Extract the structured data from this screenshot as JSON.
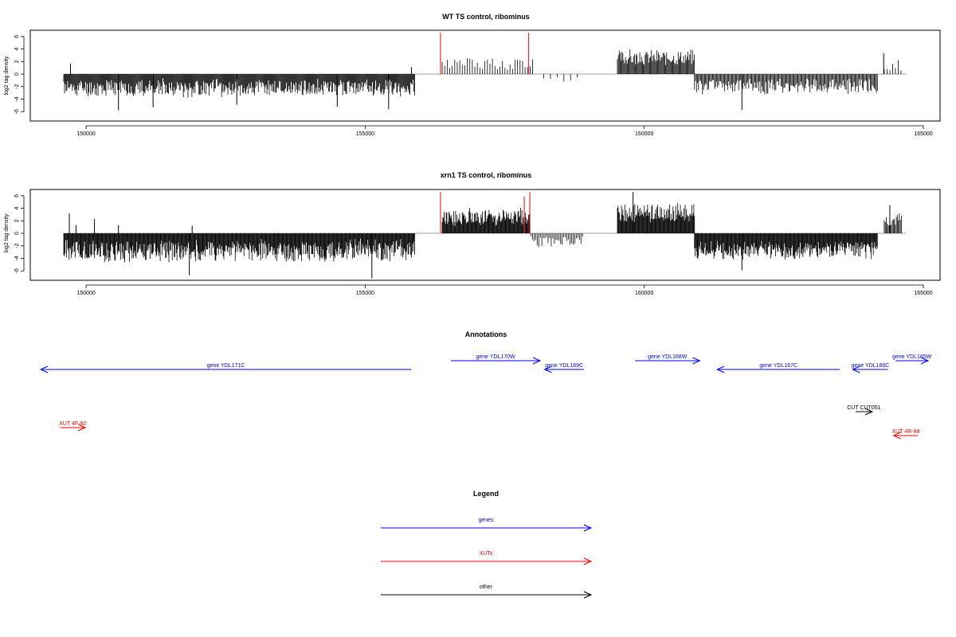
{
  "colors": {
    "bars": "#000000",
    "highlight": "#ff0000",
    "gene": "#0000ff",
    "xut": "#ff0000",
    "other": "#000000",
    "axis": "#000000",
    "baseline": "#808080"
  },
  "panels": [
    {
      "title": "WT TS control, ribominus",
      "ylabel": "log2 tag density",
      "xlim": [
        149000,
        165300
      ],
      "ylim": [
        -7.5,
        7
      ],
      "x_ticks": [
        150000,
        155000,
        160000,
        165000
      ],
      "y_ticks": [
        6,
        4,
        2,
        0,
        -2,
        -4,
        -6
      ],
      "segments": [
        {
          "start": 149600,
          "end": 155890,
          "sign": -1,
          "mean": -2.2,
          "amp": 1.6,
          "step": 14,
          "seed": 11
        },
        {
          "start": 156380,
          "end": 158000,
          "sign": 1,
          "mean": 1.6,
          "amp": 1.2,
          "step": 45,
          "seed": 12
        },
        {
          "start": 158200,
          "end": 158800,
          "sign": -1,
          "mean": -0.8,
          "amp": 0.6,
          "step": 120,
          "seed": 13
        },
        {
          "start": 159520,
          "end": 160900,
          "sign": 1,
          "mean": 2.6,
          "amp": 1.4,
          "step": 16,
          "seed": 14
        },
        {
          "start": 160900,
          "end": 164180,
          "sign": -1,
          "mean": -1.9,
          "amp": 1.4,
          "step": 18,
          "seed": 15
        },
        {
          "start": 164300,
          "end": 164620,
          "sign": 1,
          "mean": 1.4,
          "amp": 1.0,
          "step": 50,
          "seed": 16
        }
      ],
      "spikes": [
        {
          "x": 149720,
          "y": 1.7
        },
        {
          "x": 150580,
          "y": -5.8
        },
        {
          "x": 151200,
          "y": -5.3
        },
        {
          "x": 152700,
          "y": -4.9
        },
        {
          "x": 154500,
          "y": -5.2
        },
        {
          "x": 155420,
          "y": -5.6
        },
        {
          "x": 155830,
          "y": 1.1
        },
        {
          "x": 161750,
          "y": -5.7
        },
        {
          "x": 164290,
          "y": 3.3
        }
      ],
      "highlights": [
        {
          "x": 156350,
          "y": 6.6
        },
        {
          "x": 157930,
          "y": 6.6
        }
      ]
    },
    {
      "title": "xrn1 TS control, ribominus",
      "ylabel": "log2 tag density",
      "xlim": [
        149000,
        165300
      ],
      "ylim": [
        -7.5,
        7
      ],
      "x_ticks": [
        150000,
        155000,
        160000,
        165000
      ],
      "y_ticks": [
        6,
        4,
        2,
        0,
        -2,
        -4,
        -6
      ],
      "segments": [
        {
          "start": 149600,
          "end": 155890,
          "sign": -1,
          "mean": -2.8,
          "amp": 2.0,
          "step": 12,
          "seed": 21
        },
        {
          "start": 156380,
          "end": 157960,
          "sign": 1,
          "mean": 2.6,
          "amp": 1.6,
          "step": 12,
          "seed": 22
        },
        {
          "start": 157970,
          "end": 158900,
          "sign": -1,
          "mean": -1.3,
          "amp": 1.0,
          "step": 28,
          "seed": 23
        },
        {
          "start": 159520,
          "end": 160900,
          "sign": 1,
          "mean": 3.2,
          "amp": 1.8,
          "step": 12,
          "seed": 24
        },
        {
          "start": 160900,
          "end": 164180,
          "sign": -1,
          "mean": -2.7,
          "amp": 1.6,
          "step": 12,
          "seed": 25
        },
        {
          "start": 164300,
          "end": 164620,
          "sign": 1,
          "mean": 2.2,
          "amp": 1.4,
          "step": 18,
          "seed": 26
        }
      ],
      "spikes": [
        {
          "x": 149700,
          "y": 3.2
        },
        {
          "x": 149820,
          "y": 1.3
        },
        {
          "x": 150150,
          "y": 2.3
        },
        {
          "x": 150580,
          "y": 1.3
        },
        {
          "x": 151850,
          "y": -6.7
        },
        {
          "x": 151900,
          "y": 1.2
        },
        {
          "x": 155120,
          "y": -7.2
        },
        {
          "x": 159800,
          "y": 6.6
        },
        {
          "x": 161750,
          "y": -5.9
        },
        {
          "x": 164400,
          "y": 4.5
        }
      ],
      "highlights": [
        {
          "x": 156350,
          "y": 6.6
        },
        {
          "x": 157850,
          "y": 5.9
        },
        {
          "x": 157950,
          "y": 6.6
        }
      ]
    }
  ],
  "annotations": {
    "title": "Annotations",
    "features": [
      {
        "label": "gene YDL171C",
        "start": 155640,
        "end": 149000,
        "row": 2,
        "type": "gene"
      },
      {
        "label": "gene YDL170W",
        "start": 156350,
        "end": 157950,
        "row": 1,
        "type": "gene"
      },
      {
        "label": "gene YDL169C",
        "start": 158730,
        "end": 158030,
        "row": 3,
        "type": "gene"
      },
      {
        "label": "gene YDL168W",
        "start": 159650,
        "end": 160810,
        "row": 1,
        "type": "gene"
      },
      {
        "label": "gene YDL167C",
        "start": 163320,
        "end": 161120,
        "row": 3,
        "type": "gene"
      },
      {
        "label": "gene YDL166C",
        "start": 164180,
        "end": 163550,
        "row": 3,
        "type": "gene"
      },
      {
        "label": "gene YDL165W",
        "start": 164320,
        "end": 164900,
        "row": 1,
        "type": "gene"
      },
      {
        "label": "XUT 4F-92",
        "start": 149350,
        "end": 149800,
        "row": 5,
        "type": "xut"
      },
      {
        "label": "CUT CUT051",
        "start": 163600,
        "end": 163900,
        "row": 4,
        "type": "other"
      },
      {
        "label": "XUT 4R-88",
        "start": 164720,
        "end": 164280,
        "row": 6,
        "type": "xut"
      }
    ]
  },
  "legend": {
    "title": "Legend",
    "items": [
      {
        "label": "genes",
        "type": "gene"
      },
      {
        "label": "XUTs",
        "type": "xut"
      },
      {
        "label": "other",
        "type": "other"
      }
    ]
  }
}
